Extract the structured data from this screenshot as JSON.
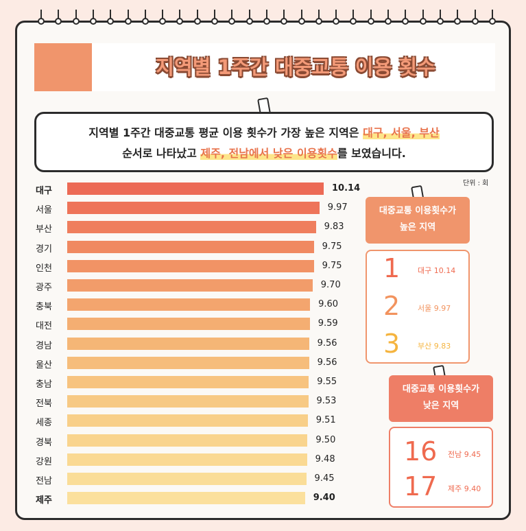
{
  "title": "지역별 1주간 대중교통 이용 횟수",
  "summary": {
    "line1_pre": "지역별 1주간 대중교통 평균 이용 횟수가 가장 높은 지역은 ",
    "line1_hl": "대구, 서울, 부산",
    "line2_pre": "순서로 나타났고 ",
    "line2_hl": "제주, 전남에서 낮은 이용횟수",
    "line2_post": "를 보였습니다."
  },
  "unit": "단위 : 회",
  "chart_data": {
    "type": "bar",
    "orientation": "horizontal",
    "categories": [
      "대구",
      "서울",
      "부산",
      "경기",
      "인천",
      "광주",
      "충북",
      "대전",
      "경남",
      "울산",
      "충남",
      "전북",
      "세종",
      "경북",
      "강원",
      "전남",
      "제주"
    ],
    "values": [
      10.14,
      9.97,
      9.83,
      9.75,
      9.75,
      9.7,
      9.6,
      9.59,
      9.56,
      9.56,
      9.55,
      9.53,
      9.51,
      9.5,
      9.48,
      9.45,
      9.4
    ],
    "value_labels": [
      "10.14",
      "9.97",
      "9.83",
      "9.75",
      "9.75",
      "9.70",
      "9.60",
      "9.59",
      "9.56",
      "9.56",
      "9.55",
      "9.53",
      "9.51",
      "9.50",
      "9.48",
      "9.45",
      "9.40"
    ],
    "colors": [
      "#ec6a55",
      "#ee7459",
      "#ef7e5d",
      "#f08961",
      "#f19365",
      "#f29c6a",
      "#f3a56e",
      "#f4ae72",
      "#f5b676",
      "#f6bd7b",
      "#f7c37f",
      "#f7c984",
      "#f8cf89",
      "#f9d48e",
      "#fad993",
      "#fadd98",
      "#fbe09d"
    ]
  },
  "high": {
    "label": "대중교통 이용횟수가 높은 지역",
    "items": [
      {
        "rank": "1",
        "text": "대구 10.14",
        "color": "#ef6a4f"
      },
      {
        "rank": "2",
        "text": "서울 9.97",
        "color": "#f2935e"
      },
      {
        "rank": "3",
        "text": "부산 9.83",
        "color": "#f5b43f"
      }
    ]
  },
  "low": {
    "label": "대중교통 이용횟수가 낮은 지역",
    "items": [
      {
        "rank": "16",
        "text": "전남 9.45",
        "color": "#ef6a4f"
      },
      {
        "rank": "17",
        "text": "제주 9.40",
        "color": "#ef6a4f"
      }
    ]
  }
}
